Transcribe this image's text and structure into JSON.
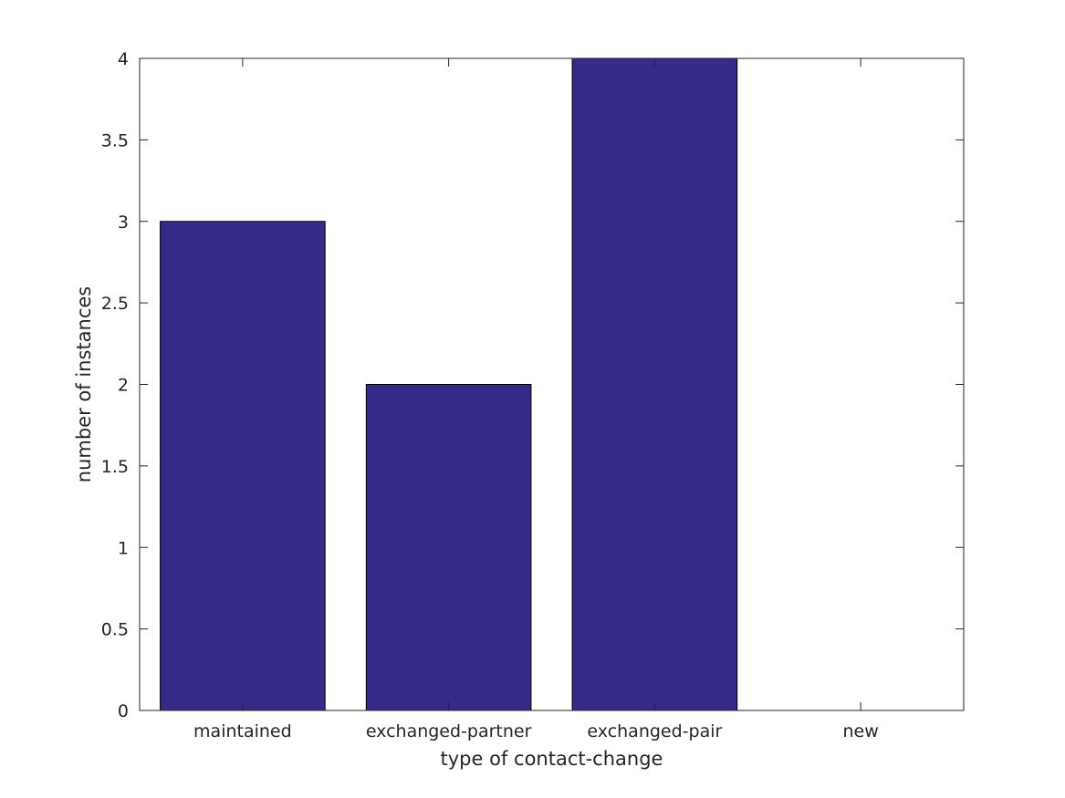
{
  "chart_data": {
    "type": "bar",
    "categories": [
      "maintained",
      "exchanged-partner",
      "exchanged-pair",
      "new"
    ],
    "values": [
      3,
      2,
      4,
      0
    ],
    "xlabel": "type of contact-change",
    "ylabel": "number of instances",
    "ylim": [
      0,
      4
    ],
    "yticks": [
      0,
      0.5,
      1,
      1.5,
      2,
      2.5,
      3,
      3.5,
      4
    ],
    "ytick_labels": [
      "0",
      "0.5",
      "1",
      "1.5",
      "2",
      "2.5",
      "3",
      "3.5",
      "4"
    ],
    "bar_color": "#352a87",
    "grid": false,
    "legend": "none"
  }
}
